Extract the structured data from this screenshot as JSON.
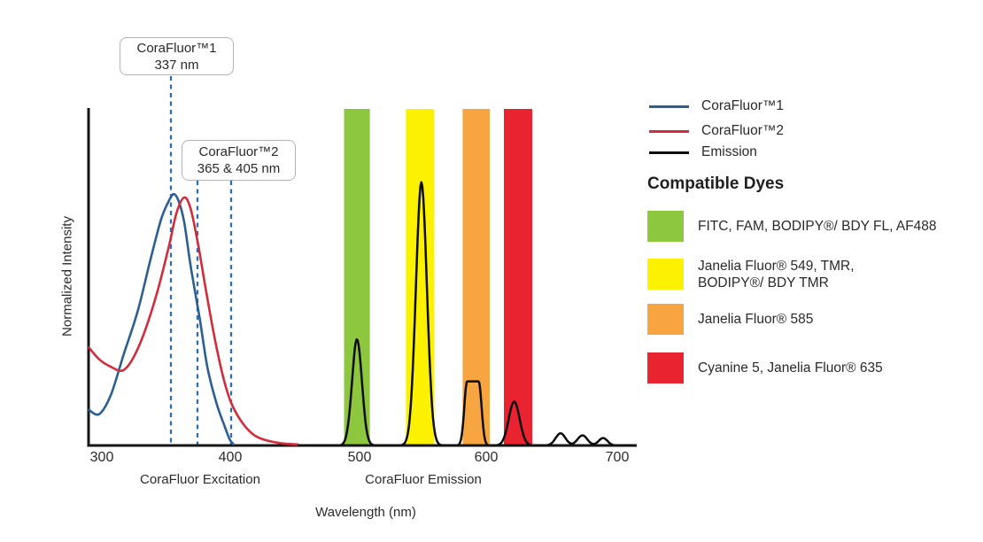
{
  "annotations": {
    "callout1": {
      "line1": "CoraFluor™1",
      "line2": "337 nm"
    },
    "callout2": {
      "line1": "CoraFluor™2",
      "line2": "365 & 405 nm"
    }
  },
  "axis": {
    "x_ticks": [
      "300",
      "400",
      "500",
      "600",
      "700"
    ],
    "x_label": "Wavelength (nm)",
    "y_label": "Normalized Intensity",
    "section_left": "CoraFluor Excitation",
    "section_right": "CoraFluor Emission"
  },
  "legend": {
    "items": [
      {
        "label": "CoraFluor™1",
        "color": "#2b5f94"
      },
      {
        "label": "CoraFluor™2",
        "color": "#d22c3a"
      },
      {
        "label": "Emission",
        "color": "#0d0d0d"
      }
    ]
  },
  "compatible_dyes": {
    "title": "Compatible Dyes",
    "items": [
      {
        "label": "FITC, FAM, BODIPY®/ BDY FL, AF488",
        "color": "#8dc63f"
      },
      {
        "label": "Janelia Fluor® 549, TMR, BODIPY®/ BDY TMR",
        "color": "#fcf200"
      },
      {
        "label": "Janelia Fluor® 585",
        "color": "#f7a541"
      },
      {
        "label": "Cyanine 5, Janelia Fluor® 635",
        "color": "#e9232f"
      }
    ]
  },
  "chart_data": {
    "type": "line",
    "title": "",
    "xlabel": "Wavelength (nm)",
    "ylabel": "Normalized Intensity",
    "xlim": [
      290,
      715
    ],
    "ylim": [
      0,
      1
    ],
    "x_ticks": [
      300,
      400,
      500,
      600,
      700
    ],
    "grid": false,
    "legend_position": "right",
    "section_labels": [
      {
        "label": "CoraFluor Excitation",
        "span_nm": [
          300,
          430
        ]
      },
      {
        "label": "CoraFluor Emission",
        "span_nm": [
          480,
          700
        ]
      }
    ],
    "excitation_markers": [
      {
        "label": "CoraFluor™1",
        "value": "337 nm"
      },
      {
        "label": "CoraFluor™2",
        "value": "365 & 405 nm"
      }
    ],
    "series": [
      {
        "name": "CoraFluor™1",
        "role": "excitation",
        "color": "#2b5f94",
        "points": [
          [
            290,
            0.105
          ],
          [
            298,
            0.093
          ],
          [
            307,
            0.15
          ],
          [
            317,
            0.27
          ],
          [
            328,
            0.4
          ],
          [
            338,
            0.555
          ],
          [
            346,
            0.67
          ],
          [
            352,
            0.725
          ],
          [
            356,
            0.745
          ],
          [
            360,
            0.72
          ],
          [
            364,
            0.66
          ],
          [
            369,
            0.53
          ],
          [
            376,
            0.375
          ],
          [
            382,
            0.23
          ],
          [
            389,
            0.125
          ],
          [
            395,
            0.06
          ],
          [
            399,
            0.02
          ],
          [
            402,
            0.004
          ]
        ]
      },
      {
        "name": "CoraFluor™2",
        "role": "excitation",
        "color": "#d22c3a",
        "points": [
          [
            290,
            0.29
          ],
          [
            298,
            0.255
          ],
          [
            307,
            0.233
          ],
          [
            316,
            0.222
          ],
          [
            324,
            0.257
          ],
          [
            333,
            0.335
          ],
          [
            343,
            0.455
          ],
          [
            352,
            0.59
          ],
          [
            358,
            0.69
          ],
          [
            364,
            0.735
          ],
          [
            369,
            0.7
          ],
          [
            375,
            0.59
          ],
          [
            381,
            0.455
          ],
          [
            388,
            0.31
          ],
          [
            394,
            0.205
          ],
          [
            400,
            0.13
          ],
          [
            408,
            0.073
          ],
          [
            417,
            0.034
          ],
          [
            427,
            0.016
          ],
          [
            440,
            0.006
          ],
          [
            452,
            0.003
          ]
        ]
      },
      {
        "name": "Emission",
        "role": "emission",
        "color": "#0d0d0d",
        "baseline": 0,
        "peaks": [
          {
            "center": 498,
            "height": 0.315,
            "fwhm": 9
          },
          {
            "center": 548,
            "height": 0.78,
            "fwhm": 10
          },
          {
            "center": 588,
            "height": 0.19,
            "fwhm": 11,
            "shape": "mesa"
          },
          {
            "center": 620,
            "height": 0.13,
            "fwhm": 10
          },
          {
            "center": 656,
            "height": 0.036,
            "fwhm": 9
          },
          {
            "center": 673,
            "height": 0.03,
            "fwhm": 9
          },
          {
            "center": 689,
            "height": 0.022,
            "fwhm": 8
          }
        ]
      }
    ],
    "filter_bands": [
      {
        "from_nm": 488,
        "to_nm": 508,
        "color": "#8dc63f",
        "dyes": "FITC, FAM, BODIPY®/ BDY FL, AF488"
      },
      {
        "from_nm": 536,
        "to_nm": 558,
        "color": "#fcf200",
        "dyes": "Janelia Fluor® 549, TMR, BODIPY®/ BDY TMR"
      },
      {
        "from_nm": 580,
        "to_nm": 601,
        "color": "#f7a541",
        "dyes": "Janelia Fluor® 585"
      },
      {
        "from_nm": 612,
        "to_nm": 634,
        "color": "#e9232f",
        "dyes": "Cyanine 5, Janelia Fluor® 635"
      }
    ]
  }
}
